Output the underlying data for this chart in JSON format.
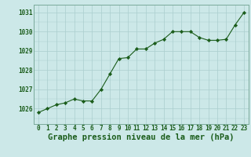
{
  "hours": [
    0,
    1,
    2,
    3,
    4,
    5,
    6,
    7,
    8,
    9,
    10,
    11,
    12,
    13,
    14,
    15,
    16,
    17,
    18,
    19,
    20,
    21,
    22,
    23
  ],
  "pressure": [
    1025.8,
    1026.0,
    1026.2,
    1026.3,
    1026.5,
    1026.4,
    1026.4,
    1027.0,
    1027.8,
    1028.6,
    1028.65,
    1029.1,
    1029.1,
    1029.4,
    1029.6,
    1030.0,
    1030.0,
    1030.0,
    1029.7,
    1029.55,
    1029.55,
    1029.6,
    1030.35,
    1031.0
  ],
  "line_color": "#1a5c1a",
  "marker_color": "#1a5c1a",
  "bg_color": "#cce8e8",
  "grid_color": "#aacece",
  "axis_label_color": "#1a5c1a",
  "title": "Graphe pression niveau de la mer (hPa)",
  "ylim_min": 1025.2,
  "ylim_max": 1031.4,
  "tick_fontsize": 5.5,
  "title_fontsize": 7.5
}
